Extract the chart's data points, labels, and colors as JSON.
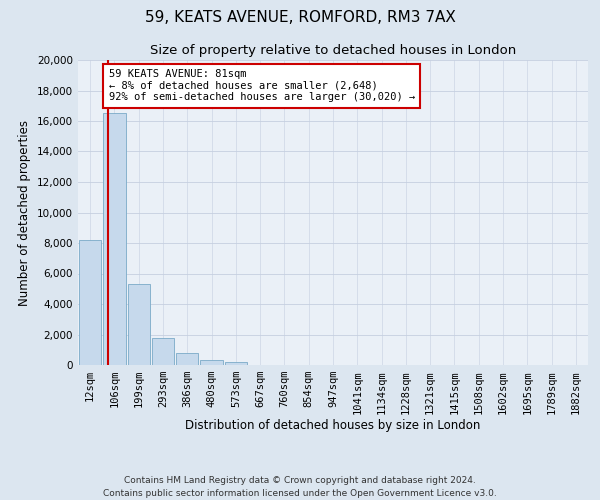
{
  "title": "59, KEATS AVENUE, ROMFORD, RM3 7AX",
  "subtitle": "Size of property relative to detached houses in London",
  "xlabel": "Distribution of detached houses by size in London",
  "ylabel": "Number of detached properties",
  "bar_labels": [
    "12sqm",
    "106sqm",
    "199sqm",
    "293sqm",
    "386sqm",
    "480sqm",
    "573sqm",
    "667sqm",
    "760sqm",
    "854sqm",
    "947sqm",
    "1041sqm",
    "1134sqm",
    "1228sqm",
    "1321sqm",
    "1415sqm",
    "1508sqm",
    "1602sqm",
    "1695sqm",
    "1789sqm",
    "1882sqm"
  ],
  "bar_heights": [
    8200,
    16500,
    5300,
    1750,
    800,
    300,
    200,
    0,
    0,
    0,
    0,
    0,
    0,
    0,
    0,
    0,
    0,
    0,
    0,
    0,
    0
  ],
  "bar_color": "#c6d9ec",
  "bar_edge_color": "#7aaac8",
  "annotation_box_text": "59 KEATS AVENUE: 81sqm\n← 8% of detached houses are smaller (2,648)\n92% of semi-detached houses are larger (30,020) →",
  "annotation_box_color": "#ffffff",
  "annotation_box_edge_color": "#cc0000",
  "marker_line_color": "#cc0000",
  "ylim": [
    0,
    20000
  ],
  "yticks": [
    0,
    2000,
    4000,
    6000,
    8000,
    10000,
    12000,
    14000,
    16000,
    18000,
    20000
  ],
  "footer_line1": "Contains HM Land Registry data © Crown copyright and database right 2024.",
  "footer_line2": "Contains public sector information licensed under the Open Government Licence v3.0.",
  "background_color": "#dce6f0",
  "plot_background_color": "#eaf0f7",
  "grid_color": "#c5cfe0",
  "title_fontsize": 11,
  "subtitle_fontsize": 9.5,
  "axis_label_fontsize": 8.5,
  "tick_fontsize": 7.5,
  "footer_fontsize": 6.5
}
